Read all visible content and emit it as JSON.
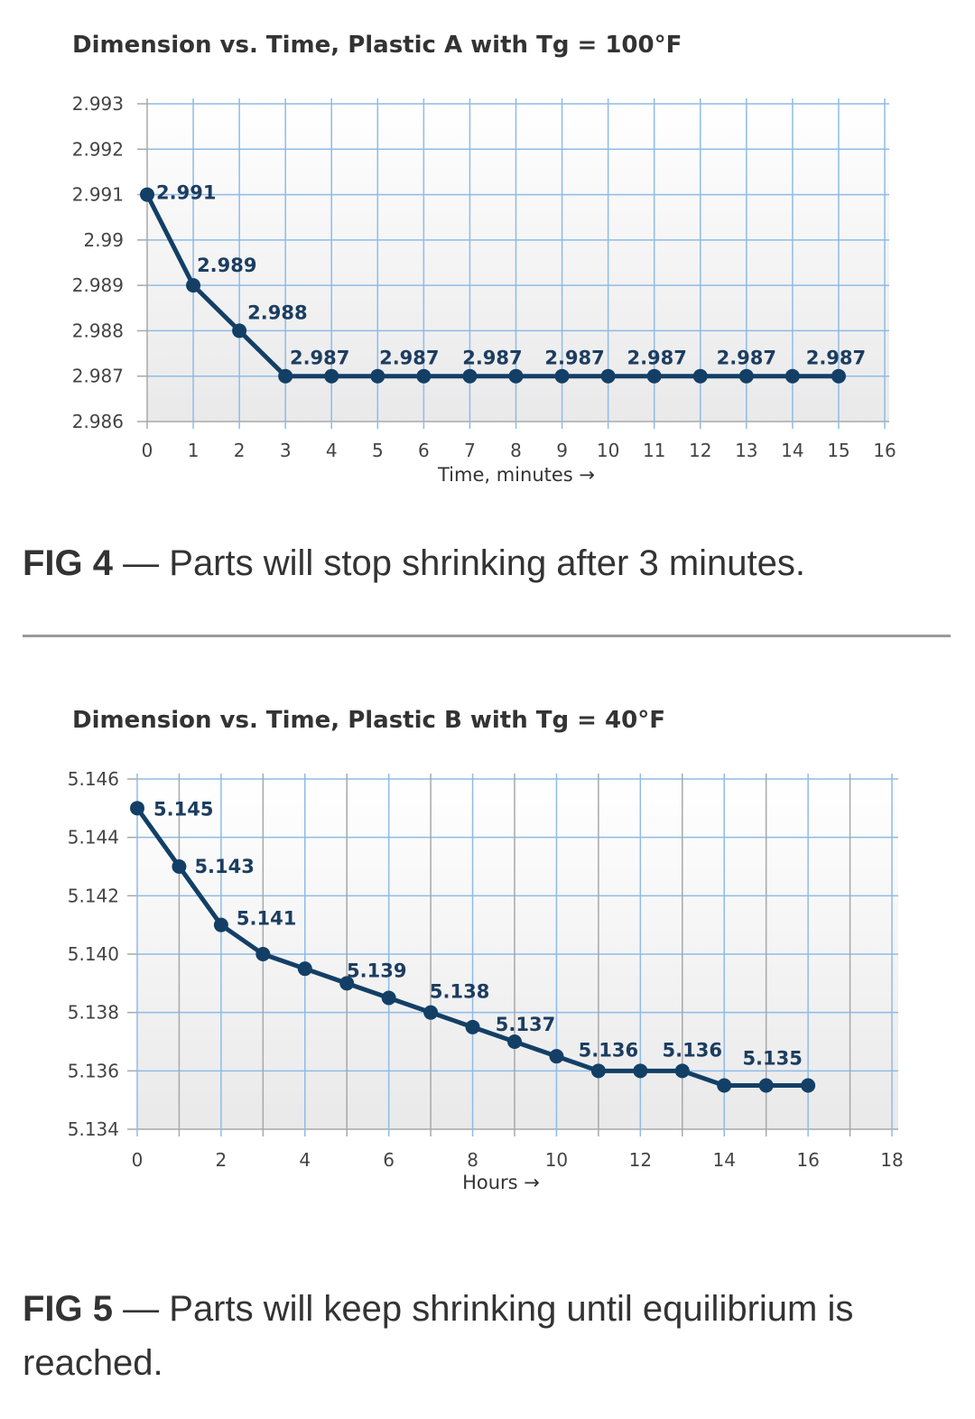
{
  "chart_data": [
    {
      "type": "line",
      "title": "Dimension vs. Time, Plastic A with Tg = 100°F",
      "xlabel": "Time, minutes →",
      "ylabel": "",
      "xlim": [
        0,
        16
      ],
      "ylim": [
        2.986,
        2.993
      ],
      "xticks": [
        "0",
        "1",
        "2",
        "3",
        "4",
        "5",
        "6",
        "7",
        "8",
        "9",
        "10",
        "11",
        "12",
        "13",
        "14",
        "15",
        "16"
      ],
      "yticks": [
        "2.993",
        "2.992",
        "2.991",
        "2.99",
        "2.989",
        "2.988",
        "2.987",
        "2.986"
      ],
      "grid": true,
      "series": [
        {
          "name": "Plastic A",
          "x": [
            0,
            1,
            2,
            3,
            4,
            5,
            6,
            7,
            8,
            9,
            10,
            11,
            12,
            13,
            14,
            15
          ],
          "y": [
            2.991,
            2.989,
            2.988,
            2.987,
            2.987,
            2.987,
            2.987,
            2.987,
            2.987,
            2.987,
            2.987,
            2.987,
            2.987,
            2.987,
            2.987,
            2.987
          ]
        }
      ],
      "data_labels": [
        {
          "point": 0,
          "text": "2.991"
        },
        {
          "point": 1,
          "text": "2.989"
        },
        {
          "point": 2,
          "text": "2.988"
        },
        {
          "point": 3,
          "text": "2.987"
        },
        {
          "point": 5,
          "text": "2.987"
        },
        {
          "point": 7,
          "text": "2.987"
        },
        {
          "point": 9,
          "text": "2.987"
        },
        {
          "point": 11,
          "text": "2.987"
        },
        {
          "point": 13,
          "text": "2.987"
        },
        {
          "point": 15,
          "text": "2.987"
        }
      ]
    },
    {
      "type": "line",
      "title": "Dimension vs. Time, Plastic B with Tg = 40°F",
      "xlabel": "Hours →",
      "ylabel": "",
      "xlim": [
        0,
        18
      ],
      "ylim": [
        5.134,
        5.146
      ],
      "xticks": [
        "0",
        "2",
        "4",
        "6",
        "8",
        "10",
        "12",
        "14",
        "16",
        "18"
      ],
      "yticks": [
        "5.146",
        "5.144",
        "5.142",
        "5.140",
        "5.138",
        "5.136",
        "5.134"
      ],
      "grid": true,
      "series": [
        {
          "name": "Plastic B",
          "x": [
            0,
            1,
            2,
            3,
            4,
            5,
            6,
            7,
            8,
            9,
            10,
            11,
            12,
            13,
            14,
            15,
            16
          ],
          "y": [
            5.145,
            5.143,
            5.141,
            5.14,
            5.1395,
            5.139,
            5.1385,
            5.138,
            5.1375,
            5.137,
            5.1365,
            5.136,
            5.136,
            5.136,
            5.1355,
            5.1355,
            5.1355
          ]
        }
      ],
      "data_labels": [
        {
          "point": 0,
          "text": "5.145"
        },
        {
          "point": 1,
          "text": "5.143"
        },
        {
          "point": 2,
          "text": "5.141"
        },
        {
          "point": 5,
          "text": "5.139"
        },
        {
          "point": 7,
          "text": "5.138"
        },
        {
          "point": 9,
          "text": "5.137"
        },
        {
          "point": 11,
          "text": "5.136"
        },
        {
          "point": 13,
          "text": "5.136"
        },
        {
          "point": 15,
          "text": "5.135"
        }
      ]
    }
  ],
  "captions": [
    {
      "fig": "FIG 4",
      "text": " — Parts will stop shrinking after 3 minutes."
    },
    {
      "fig": "FIG 5",
      "text": " — Parts will keep shrinking until equilibrium is reached."
    }
  ],
  "colors": {
    "line": "#133f66",
    "grid_blue": "#8fbbe6",
    "grid_gray": "#a8a8a8",
    "label": "#1c3d60",
    "tick": "#444444"
  }
}
